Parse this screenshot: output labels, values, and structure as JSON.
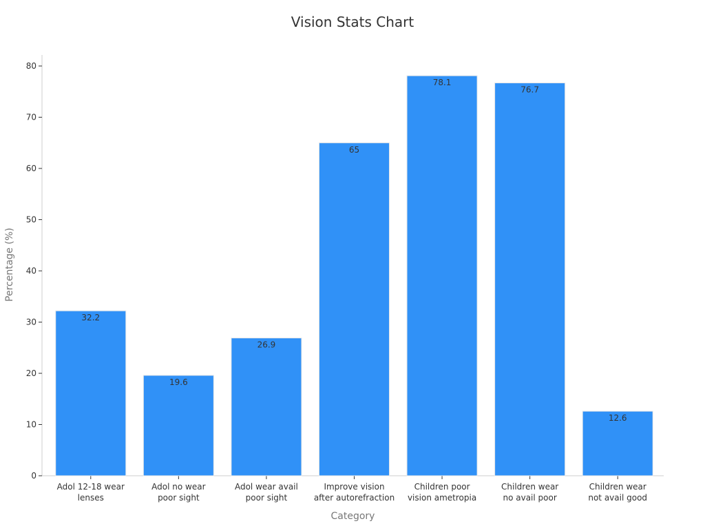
{
  "chart_data": {
    "type": "bar",
    "title": "Vision Stats Chart",
    "xlabel": "Category",
    "ylabel": "Percentage (%)",
    "ylim": [
      0,
      80
    ],
    "yticks": [
      0,
      10,
      20,
      30,
      40,
      50,
      60,
      70,
      80
    ],
    "categories": [
      [
        "Adol 12-18 wear",
        "lenses"
      ],
      [
        "Adol no wear",
        "poor sight"
      ],
      [
        "Adol wear avail",
        "poor sight"
      ],
      [
        "Improve vision",
        "after autorefraction"
      ],
      [
        "Children poor",
        "vision ametropia"
      ],
      [
        "Children wear",
        "no avail poor"
      ],
      [
        "Children wear",
        "not avail good"
      ]
    ],
    "values": [
      32.2,
      19.6,
      26.9,
      65,
      78.1,
      76.7,
      12.6
    ],
    "data_labels": [
      "32.2",
      "19.6",
      "26.9",
      "65",
      "78.1",
      "76.7",
      "12.6"
    ],
    "bar_color": "#3091F7",
    "grid": false,
    "legend": "none"
  }
}
